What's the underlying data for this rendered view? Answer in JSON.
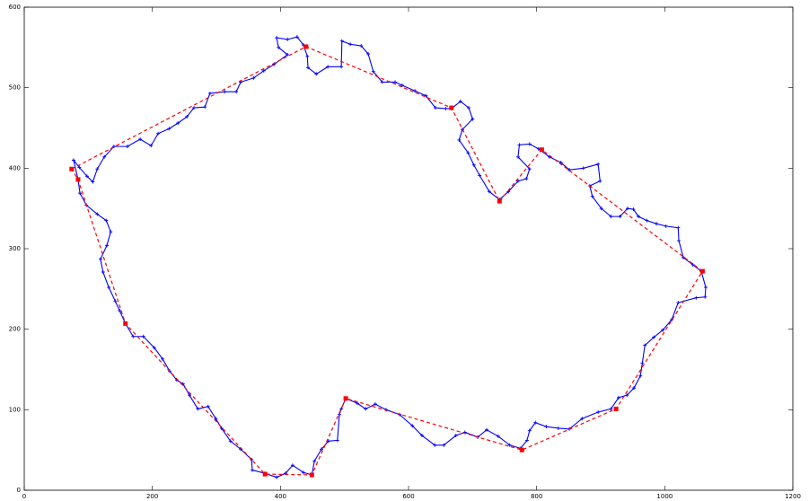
{
  "chart_data": {
    "type": "line",
    "xlim": [
      0,
      1200
    ],
    "ylim": [
      0,
      600
    ],
    "xticks": [
      0,
      200,
      400,
      600,
      800,
      1000,
      1200
    ],
    "yticks": [
      0,
      100,
      200,
      300,
      400,
      500,
      600
    ],
    "closed": true,
    "series": [
      {
        "color": "#0000ff",
        "dashed": false,
        "marker": "plus",
        "x": [
          77,
          86,
          98,
          107,
          114,
          125,
          140,
          161,
          181,
          198,
          209,
          226,
          240,
          254,
          265,
          282,
          290,
          313,
          331,
          338,
          358,
          374,
          390,
          411,
          397,
          394,
          411,
          426,
          436,
          442,
          443,
          456,
          474,
          495,
          496,
          509,
          526,
          537,
          545,
          559,
          579,
          590,
          610,
          627,
          642,
          658,
          667,
          681,
          694,
          700,
          684,
          679,
          693,
          702,
          711,
          726,
          742,
          756,
          771,
          784,
          789,
          771,
          773,
          789,
          803,
          820,
          838,
          851,
          873,
          896,
          899,
          883,
          887,
          901,
          916,
          930,
          942,
          951,
          959,
          972,
          987,
          1002,
          1021,
          1022,
          1029,
          1044,
          1057,
          1064,
          1063,
          1049,
          1021,
          1011,
          997,
          983,
          969,
          965,
          962,
          952,
          941,
          928,
          916,
          896,
          871,
          851,
          834,
          815,
          798,
          789,
          785,
          775,
          758,
          740,
          722,
          708,
          688,
          674,
          655,
          641,
          621,
          606,
          586,
          565,
          548,
          533,
          520,
          502,
          495,
          492,
          489,
          475,
          464,
          453,
          449,
          436,
          419,
          408,
          394,
          376,
          356,
          355,
          338,
          322,
          308,
          299,
          287,
          271,
          258,
          248,
          238,
          227,
          216,
          203,
          186,
          170,
          158,
          149,
          142,
          132,
          123,
          119,
          129,
          135,
          128,
          114,
          97,
          87,
          84
        ],
        "values": [
          410,
          401,
          390,
          383,
          399,
          414,
          427,
          427,
          436,
          428,
          443,
          449,
          456,
          464,
          475,
          476,
          493,
          495,
          495,
          507,
          512,
          521,
          529,
          541,
          550,
          562,
          560,
          563,
          553,
          539,
          525,
          517,
          526,
          526,
          558,
          554,
          552,
          542,
          520,
          507,
          507,
          503,
          496,
          490,
          475,
          474,
          474,
          483,
          475,
          461,
          448,
          435,
          419,
          404,
          391,
          371,
          361,
          371,
          384,
          387,
          399,
          414,
          429,
          430,
          424,
          414,
          407,
          398,
          400,
          405,
          384,
          378,
          365,
          350,
          340,
          340,
          350,
          349,
          340,
          335,
          331,
          328,
          326,
          310,
          289,
          280,
          272,
          252,
          240,
          239,
          233,
          212,
          199,
          190,
          180,
          158,
          142,
          127,
          118,
          115,
          101,
          97,
          89,
          76,
          77,
          79,
          84,
          74,
          62,
          52,
          56,
          67,
          75,
          66,
          72,
          68,
          56,
          56,
          68,
          80,
          94,
          100,
          107,
          101,
          108,
          114,
          101,
          94,
          62,
          61,
          51,
          36,
          19,
          22,
          31,
          21,
          16,
          21,
          25,
          38,
          51,
          61,
          77,
          89,
          104,
          101,
          118,
          132,
          137,
          148,
          163,
          177,
          191,
          191,
          207,
          223,
          235,
          252,
          271,
          287,
          304,
          321,
          335,
          343,
          354,
          369,
          386
        ]
      },
      {
        "color": "#ff0000",
        "dashed": true,
        "marker": "square",
        "x": [
          74,
          440,
          667,
          742,
          808,
          1059,
          924,
          777,
          502,
          449,
          376,
          158,
          84
        ],
        "values": [
          399,
          551,
          475,
          359,
          423,
          272,
          101,
          50,
          114,
          19,
          20,
          207,
          386
        ]
      }
    ]
  }
}
